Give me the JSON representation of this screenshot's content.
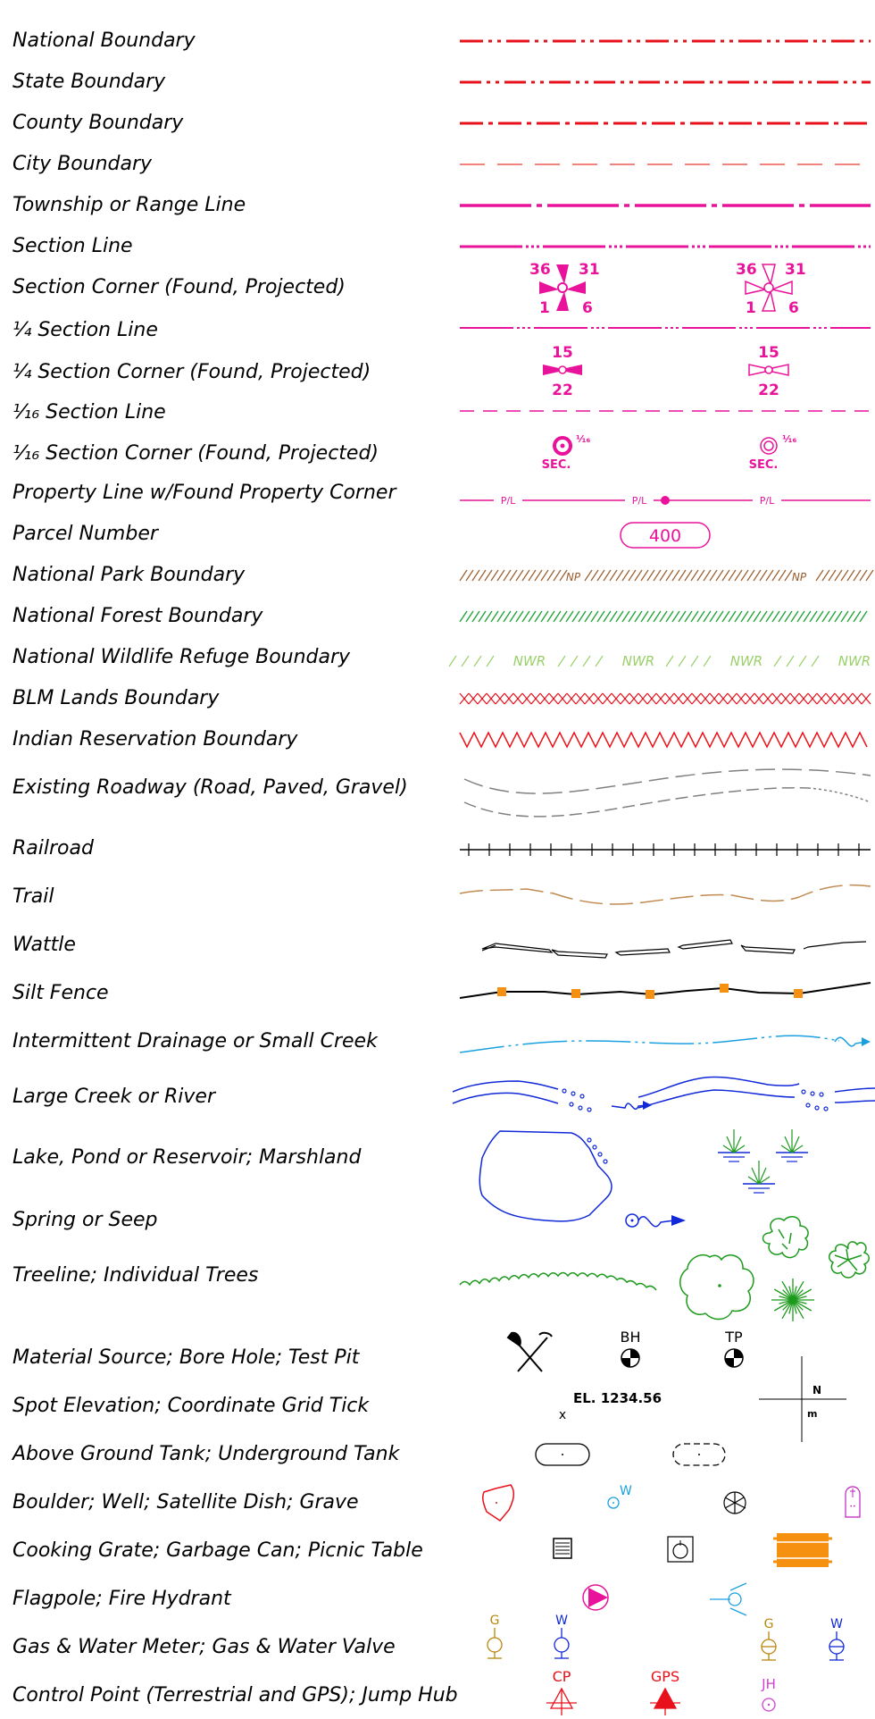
{
  "rows": [
    {
      "label": "National Boundary"
    },
    {
      "label": "State Boundary"
    },
    {
      "label": "County Boundary"
    },
    {
      "label": "City Boundary"
    },
    {
      "label": "Township or Range Line"
    },
    {
      "label": "Section Line"
    },
    {
      "label": "Section Corner (Found, Projected)"
    },
    {
      "label": "¼ Section Line"
    },
    {
      "label": "¼ Section Corner (Found, Projected)"
    },
    {
      "label": "¹⁄₁₆ Section Line"
    },
    {
      "label": "¹⁄₁₆ Section Corner (Found, Projected)"
    },
    {
      "label": "Property Line w/Found Property Corner"
    },
    {
      "label": "Parcel Number"
    },
    {
      "label": "National Park Boundary"
    },
    {
      "label": "National Forest Boundary"
    },
    {
      "label": "National Wildlife Refuge Boundary"
    },
    {
      "label": "BLM Lands Boundary"
    },
    {
      "label": "Indian Reservation Boundary"
    },
    {
      "label": "Existing Roadway (Road, Paved, Gravel)"
    },
    {
      "label": "Railroad"
    },
    {
      "label": "Trail"
    },
    {
      "label": "Wattle"
    },
    {
      "label": "Silt Fence"
    },
    {
      "label": "Intermittent Drainage or Small Creek"
    },
    {
      "label": "Large Creek or River"
    },
    {
      "label": "Lake, Pond or Reservoir; Marshland"
    },
    {
      "label": "Spring or Seep"
    },
    {
      "label": "Treeline; Individual Trees"
    },
    {
      "label": "Material Source; Bore Hole; Test Pit"
    },
    {
      "label": "Spot Elevation; Coordinate Grid Tick"
    },
    {
      "label": "Above Ground Tank; Underground Tank"
    },
    {
      "label": "Boulder; Well; Satellite Dish; Grave"
    },
    {
      "label": "Cooking Grate; Garbage Can; Picnic Table"
    },
    {
      "label": "Flagpole; Fire Hydrant"
    },
    {
      "label": "Gas & Water Meter; Gas & Water Valve"
    },
    {
      "label": "Control Point (Terrestrial and GPS); Jump Hub"
    }
  ],
  "symbols": {
    "section_corner_found": {
      "tl": "36",
      "tr": "31",
      "bl": "1",
      "br": "6"
    },
    "section_corner_projected": {
      "tl": "36",
      "tr": "31",
      "bl": "1",
      "br": "6"
    },
    "quarter_corner_found": {
      "top": "15",
      "bottom": "22"
    },
    "quarter_corner_projected": {
      "top": "15",
      "bottom": "22"
    },
    "sixteenth_corner_found": {
      "fraction": "¹⁄₁₆",
      "text": "SEC."
    },
    "sixteenth_corner_projected": {
      "fraction": "¹⁄₁₆",
      "text": "SEC."
    },
    "property_line": {
      "tag1": "P/L",
      "tag2": "P/L",
      "tag3": "P/L"
    },
    "parcel_number": "400",
    "national_park": {
      "tag1": "NP",
      "tag2": "NP"
    },
    "wildlife_refuge": {
      "tags": [
        "NWR",
        "NWR",
        "NWR",
        "NWR"
      ]
    },
    "bore_hole": "BH",
    "test_pit": "TP",
    "spot_elevation": "EL. 1234.56",
    "spot_mark": "x",
    "grid_tick": {
      "n": "N",
      "m": "m"
    },
    "well": "W",
    "gas_meter": "G",
    "water_meter": "W",
    "gas_valve": "G",
    "water_valve": "W",
    "control_terrestrial": "CP",
    "control_gps": "GPS",
    "jump_hub": "JH"
  },
  "colors": {
    "boundary_red": "#e8101a",
    "city_red": "#ee5a50",
    "section_magenta": "#e8139a",
    "park_brown": "#9a5b2a",
    "forest_green": "#27a23a",
    "refuge_green": "#9ad06a",
    "road_gray": "#808080",
    "trail_tan": "#c08a50",
    "creek_cyan": "#1aa0e0",
    "river_blue": "#1028d8",
    "tree_green": "#1c9a1c",
    "orange": "#f59010",
    "meter_gold": "#b8860b"
  }
}
